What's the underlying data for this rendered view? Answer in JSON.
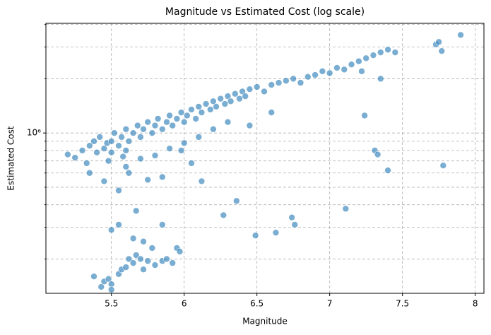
{
  "chart_data": {
    "type": "scatter",
    "title": "Magnitude vs Estimated Cost (log scale)",
    "xlabel": "Magnitude",
    "ylabel": "Estimated Cost",
    "y_scale": "log",
    "grid": true,
    "color": "#1f77b4",
    "xlim": [
      5.05,
      8.06
    ],
    "ylim": [
      129000,
      4060000
    ],
    "xticks": [
      5.5,
      6.0,
      6.5,
      7.0,
      7.5,
      8.0
    ],
    "yticks": [
      {
        "value": 1000000,
        "label": "10⁶"
      }
    ],
    "yminor": [
      200000,
      300000,
      400000,
      500000,
      600000,
      700000,
      800000,
      900000,
      2000000,
      3000000,
      4000000
    ],
    "x": [
      5.2,
      5.25,
      5.3,
      5.35,
      5.38,
      5.4,
      5.42,
      5.45,
      5.47,
      5.5,
      5.5,
      5.52,
      5.55,
      5.57,
      5.6,
      5.6,
      5.62,
      5.65,
      5.68,
      5.7,
      5.72,
      5.75,
      5.78,
      5.8,
      5.82,
      5.85,
      5.88,
      5.9,
      5.92,
      5.95,
      5.98,
      6.0,
      6.02,
      6.05,
      6.08,
      6.1,
      6.12,
      6.15,
      6.18,
      6.2,
      6.22,
      6.25,
      6.28,
      6.3,
      6.32,
      6.35,
      6.38,
      6.4,
      6.42,
      6.45,
      6.5,
      6.55,
      6.6,
      6.65,
      6.7,
      6.75,
      6.8,
      6.85,
      6.9,
      6.95,
      7.0,
      7.05,
      7.1,
      7.15,
      7.2,
      7.25,
      7.3,
      7.35,
      7.4,
      7.45,
      7.73,
      7.75,
      7.77,
      7.9,
      7.22,
      7.35,
      7.24,
      7.31,
      7.33,
      7.4,
      7.78,
      7.11,
      6.74,
      6.76,
      6.63,
      6.49,
      6.36,
      6.27,
      6.12,
      6.05,
      5.98,
      6.6,
      6.45,
      5.85,
      5.75,
      5.55,
      5.45,
      5.62,
      5.5,
      5.55,
      5.67,
      5.85,
      5.95,
      5.97,
      5.38,
      5.45,
      5.48,
      5.5,
      5.55,
      5.57,
      5.6,
      5.62,
      5.65,
      5.67,
      5.7,
      5.72,
      5.75,
      5.8,
      5.85,
      5.88,
      5.92,
      5.43,
      5.5,
      5.65,
      5.72,
      5.78,
      5.58,
      5.48,
      5.6,
      5.7,
      5.8,
      5.9,
      6.0,
      6.1,
      6.2,
      6.3,
      5.35,
      5.33
    ],
    "y": [
      760000,
      730000,
      800000,
      850000,
      900000,
      780000,
      950000,
      820000,
      880000,
      900000,
      780000,
      1000000,
      850000,
      950000,
      1050000,
      800000,
      900000,
      1000000,
      1100000,
      950000,
      1050000,
      1150000,
      1000000,
      1100000,
      1200000,
      1050000,
      1150000,
      1250000,
      1100000,
      1200000,
      1300000,
      1150000,
      1250000,
      1350000,
      1200000,
      1400000,
      1300000,
      1450000,
      1350000,
      1500000,
      1400000,
      1550000,
      1450000,
      1600000,
      1500000,
      1650000,
      1550000,
      1700000,
      1600000,
      1750000,
      1800000,
      1700000,
      1850000,
      1900000,
      1950000,
      2000000,
      1900000,
      2050000,
      2100000,
      2200000,
      2150000,
      2300000,
      2250000,
      2400000,
      2500000,
      2600000,
      2700000,
      2800000,
      2900000,
      2800000,
      3100000,
      3200000,
      2850000,
      3500000,
      2200000,
      2000000,
      1250000,
      800000,
      760000,
      620000,
      660000,
      380000,
      340000,
      310000,
      280000,
      270000,
      420000,
      350000,
      540000,
      680000,
      800000,
      1300000,
      1100000,
      570000,
      550000,
      480000,
      540000,
      600000,
      290000,
      310000,
      370000,
      310000,
      230000,
      220000,
      160000,
      150000,
      155000,
      145000,
      165000,
      175000,
      180000,
      200000,
      190000,
      210000,
      200000,
      175000,
      195000,
      185000,
      195000,
      200000,
      190000,
      140000,
      135000,
      260000,
      250000,
      230000,
      740000,
      700000,
      650000,
      720000,
      750000,
      820000,
      880000,
      950000,
      1050000,
      1150000,
      600000,
      680000
    ]
  }
}
